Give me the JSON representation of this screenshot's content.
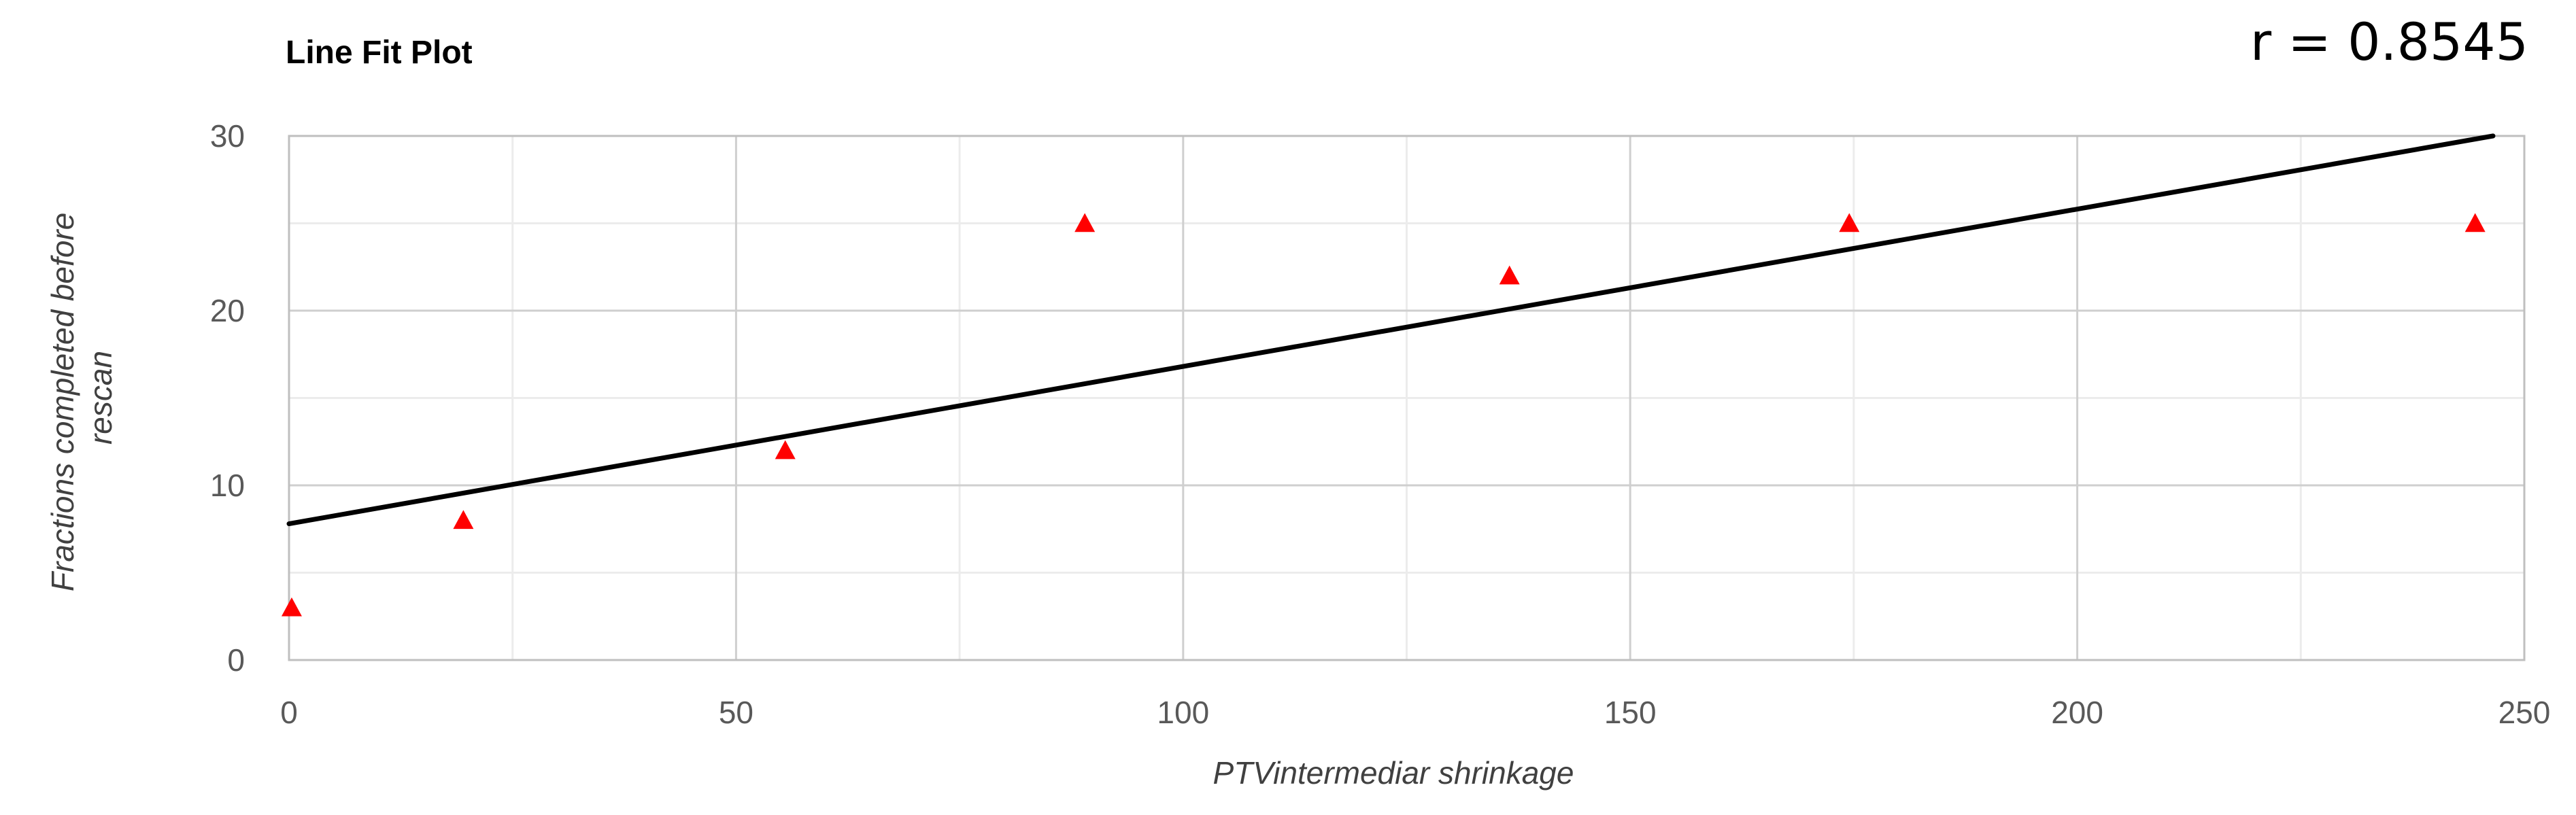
{
  "chart_data": {
    "type": "scatter",
    "title": "Line Fit Plot",
    "annotation": "r = 0.8545",
    "xlabel": "PTVintermediar shrinkage",
    "ylabel_lines": [
      "Fractions completed before",
      "rescan"
    ],
    "xlim": [
      0,
      250
    ],
    "ylim": [
      0,
      30
    ],
    "xticks": [
      0,
      50,
      100,
      150,
      200,
      250
    ],
    "yticks": [
      0,
      10,
      20,
      30
    ],
    "x_minor_step": 25,
    "y_minor_step": 5,
    "grid": true,
    "marker": "triangle",
    "marker_color": "#ff0000",
    "points": [
      {
        "x": 0.3,
        "y": 3
      },
      {
        "x": 19.5,
        "y": 8
      },
      {
        "x": 55.5,
        "y": 12
      },
      {
        "x": 89,
        "y": 25
      },
      {
        "x": 136.5,
        "y": 22
      },
      {
        "x": 174.5,
        "y": 25
      },
      {
        "x": 244.5,
        "y": 25
      }
    ],
    "fit_line": {
      "x": [
        0,
        246.5
      ],
      "y": [
        7.8,
        30
      ],
      "color": "#000000"
    }
  }
}
